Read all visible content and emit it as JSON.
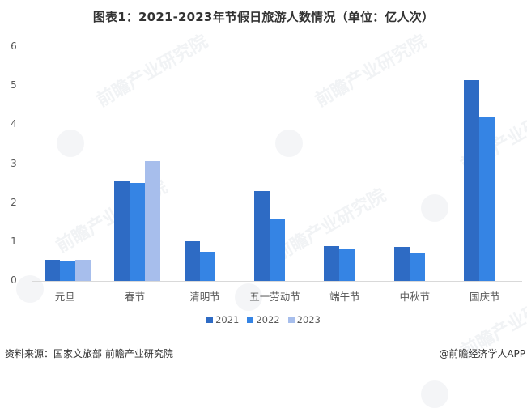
{
  "chart_data": {
    "type": "bar",
    "title": "图表1：2021-2023年节假日旅游人数情况（单位：亿人次）",
    "xlabel": "",
    "ylabel": "",
    "ylim": [
      0,
      6
    ],
    "yticks": [
      0,
      1,
      2,
      3,
      4,
      5,
      6
    ],
    "grid": false,
    "legend_position": "bottom",
    "categories": [
      "元旦",
      "春节",
      "清明节",
      "五一劳动节",
      "端午节",
      "中秋节",
      "国庆节"
    ],
    "series": [
      {
        "name": "2021",
        "color": "#2E6BC4",
        "values": [
          0.53,
          2.56,
          1.02,
          2.3,
          0.89,
          0.88,
          5.15
        ]
      },
      {
        "name": "2022",
        "color": "#3584E4",
        "values": [
          0.52,
          2.51,
          0.75,
          1.6,
          0.8,
          0.73,
          4.22
        ]
      },
      {
        "name": "2023",
        "color": "#A7BEEC",
        "values": [
          0.53,
          3.08,
          null,
          null,
          null,
          null,
          null
        ]
      }
    ]
  },
  "title": "图表1：2021-2023年节假日旅游人数情况（单位：亿人次）",
  "footer": {
    "source": "资料来源：国家文旅部 前瞻产业研究院",
    "credit": "@前瞻经济学人APP"
  },
  "watermark": "前瞻产业研究院"
}
